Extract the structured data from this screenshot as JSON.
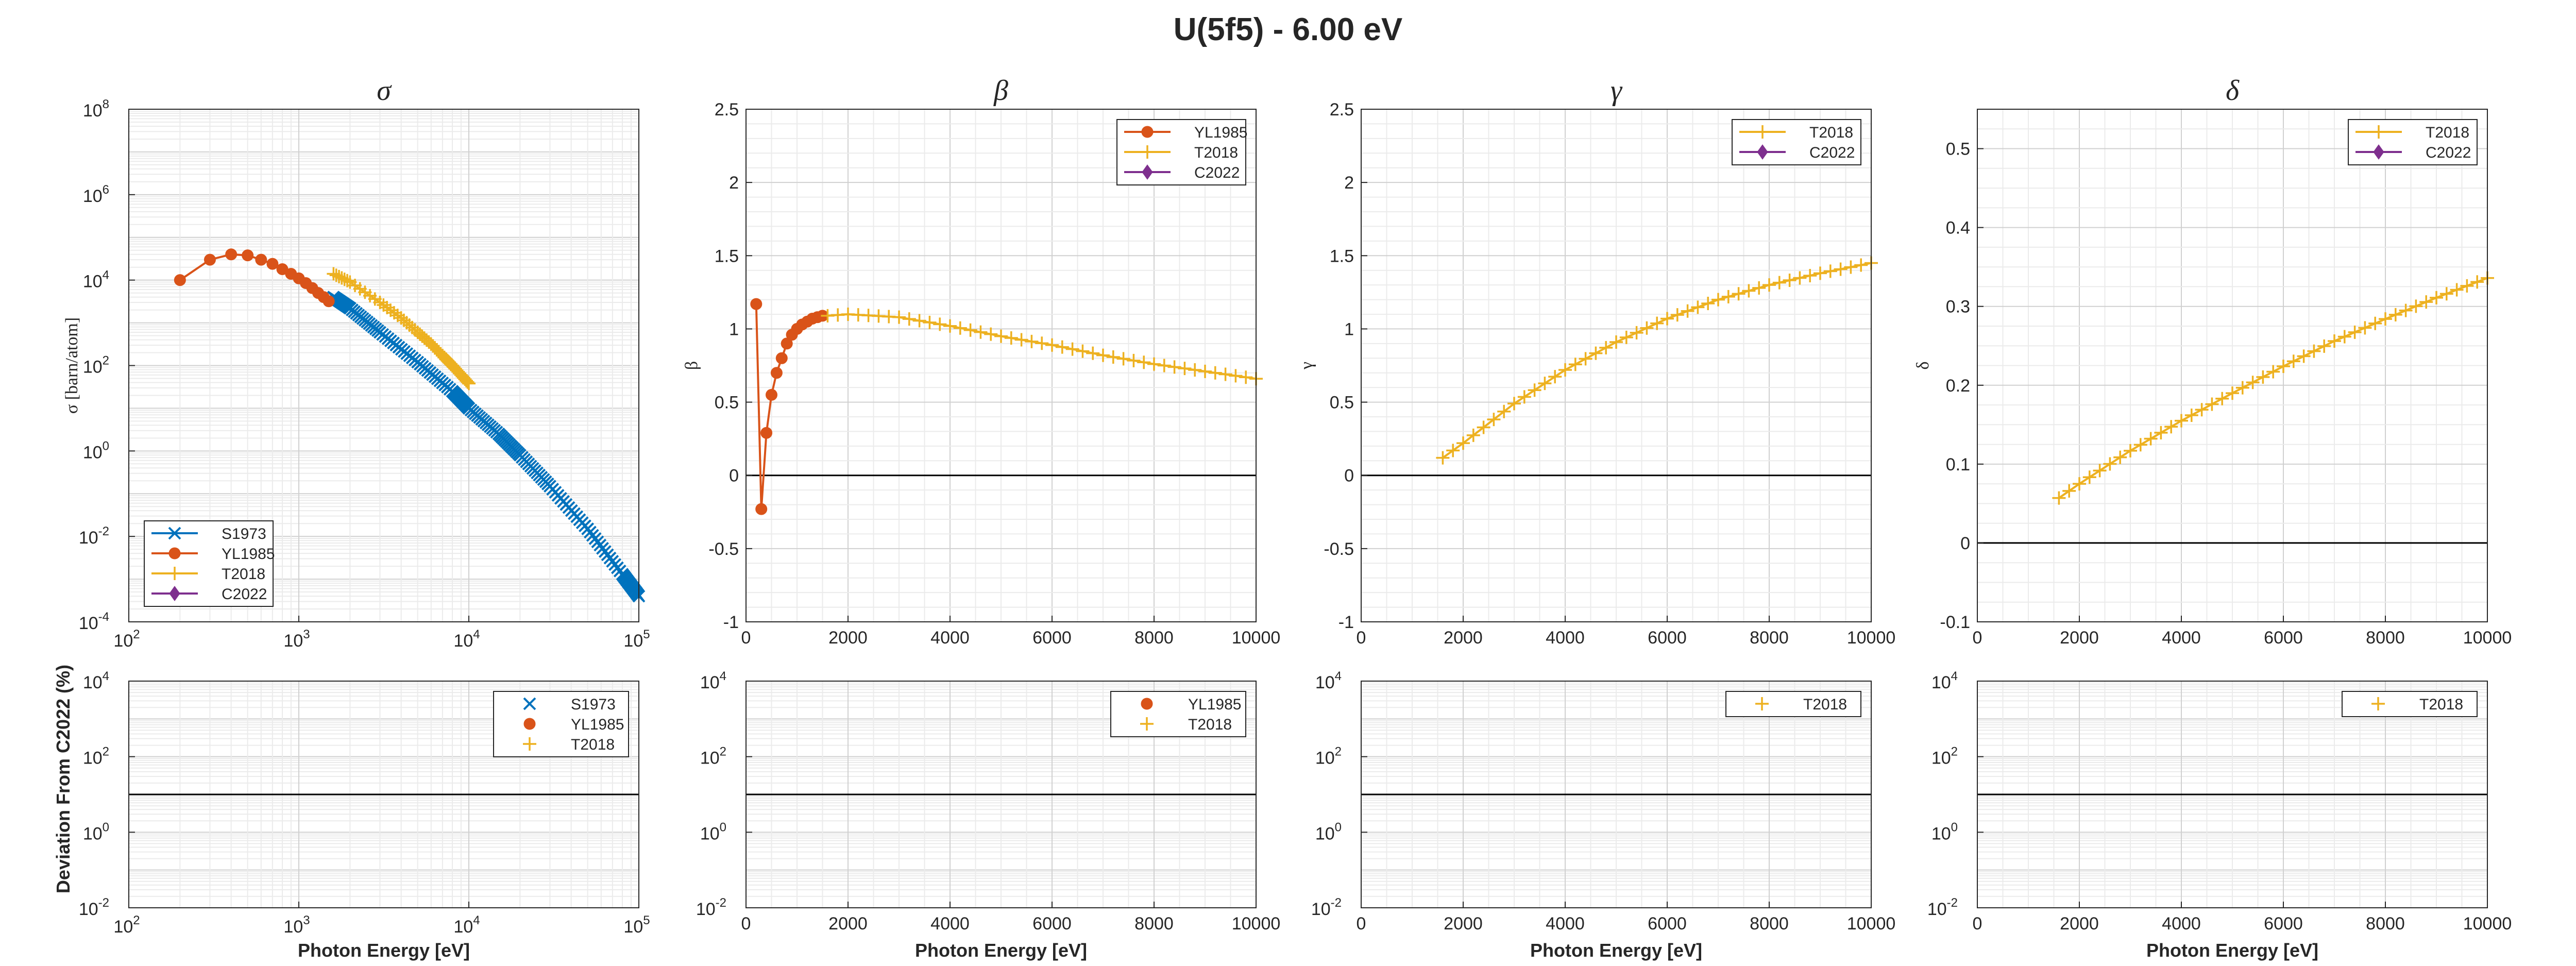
{
  "figure_title": "U(5f5) - 6.00 eV",
  "colors": {
    "S1973": "#0072BD",
    "YL1985": "#D95319",
    "T2018": "#EDB120",
    "C2022": "#7E2F8E",
    "zero_line": "#000000",
    "grid": "#dcdcdc"
  },
  "xlabel_bottom": "Photon Energy [eV]",
  "ylabel_deviation": "Deviation From C2022 (%)",
  "top_titles": [
    "σ",
    "β",
    "γ",
    "δ"
  ],
  "top_ylabels": [
    "σ [barn/atom]",
    "β",
    "γ",
    "δ"
  ],
  "linear_xticks": [
    "0",
    "2000",
    "4000",
    "6000",
    "8000",
    "10000"
  ],
  "log_xticks": [
    "2",
    "3",
    "4",
    "5"
  ],
  "log_tick_base": "10",
  "ytick_labels": {
    "sigma": [
      "-4",
      "-2",
      "0",
      "2",
      "4",
      "6",
      "8"
    ],
    "beta": [
      "-1",
      "-0.5",
      "0",
      "0.5",
      "1",
      "1.5",
      "2",
      "2.5"
    ],
    "gamma": [
      "-1",
      "-0.5",
      "0",
      "0.5",
      "1",
      "1.5",
      "2",
      "2.5"
    ],
    "delta": [
      "-0.1",
      "0",
      "0.1",
      "0.2",
      "0.3",
      "0.4",
      "0.5"
    ],
    "deviation": [
      "-2",
      "0",
      "2",
      "4"
    ]
  },
  "chart_data": [
    {
      "type": "line",
      "title": "σ",
      "xlabel": "",
      "ylabel": "σ [barn/atom]",
      "xscale": "log",
      "yscale": "log",
      "xlim": [
        100,
        100000
      ],
      "ylim": [
        0.0001,
        100000000
      ],
      "grid": true,
      "legend_placement": "bottom-left",
      "legend": [
        "S1973",
        "YL1985",
        "T2018",
        "C2022"
      ],
      "series": [
        {
          "name": "S1973",
          "marker": "x",
          "x": [
            1600,
            2000,
            3000,
            5000,
            8000,
            10000,
            15000,
            20000,
            30000,
            50000,
            80000,
            100000
          ],
          "y": [
            4000,
            2200,
            600,
            120,
            25,
            10,
            2.5,
            0.8,
            0.15,
            0.015,
            0.0013,
            0.0004
          ]
        },
        {
          "name": "YL1985",
          "marker": "o",
          "x": [
            200,
            300,
            400,
            500,
            600,
            700,
            800,
            900,
            1000,
            1100,
            1200,
            1300,
            1400,
            1500
          ],
          "y": [
            10000,
            30000,
            40000,
            38000,
            30000,
            24000,
            18000,
            14000,
            11000,
            8500,
            6500,
            5000,
            4000,
            3200
          ]
        },
        {
          "name": "T2018",
          "marker": "+",
          "x": [
            1600,
            2000,
            3000,
            4000,
            5000,
            6000,
            7000,
            8000,
            9000,
            10000
          ],
          "y": [
            14000,
            9000,
            3000,
            1300,
            600,
            320,
            170,
            100,
            60,
            38
          ]
        },
        {
          "name": "C2022",
          "marker": "diamond",
          "x": [],
          "y": []
        }
      ]
    },
    {
      "type": "line",
      "title": "β",
      "xlabel": "",
      "ylabel": "β",
      "xlim": [
        0,
        10000
      ],
      "ylim": [
        -1,
        2.5
      ],
      "grid": true,
      "legend_placement": "top-right",
      "legend": [
        "YL1985",
        "T2018",
        "C2022"
      ],
      "series": [
        {
          "name": "YL1985",
          "marker": "o",
          "x": [
            200,
            300,
            400,
            500,
            600,
            700,
            800,
            900,
            1000,
            1100,
            1200,
            1300,
            1400,
            1500
          ],
          "y": [
            1.17,
            -0.23,
            0.29,
            0.55,
            0.7,
            0.8,
            0.9,
            0.96,
            1.0,
            1.03,
            1.05,
            1.07,
            1.08,
            1.09
          ]
        },
        {
          "name": "T2018",
          "marker": "+",
          "x": [
            1600,
            2000,
            3000,
            4000,
            5000,
            6000,
            7000,
            8000,
            9000,
            10000
          ],
          "y": [
            1.09,
            1.1,
            1.08,
            1.02,
            0.95,
            0.89,
            0.82,
            0.76,
            0.71,
            0.66
          ]
        },
        {
          "name": "C2022",
          "marker": "diamond",
          "x": [],
          "y": []
        }
      ]
    },
    {
      "type": "line",
      "title": "γ",
      "xlabel": "",
      "ylabel": "γ",
      "xlim": [
        0,
        10000
      ],
      "ylim": [
        -1,
        2.5
      ],
      "grid": true,
      "legend_placement": "top-right",
      "legend": [
        "T2018",
        "C2022"
      ],
      "series": [
        {
          "name": "T2018",
          "marker": "+",
          "x": [
            1600,
            2000,
            3000,
            4000,
            5000,
            6000,
            7000,
            8000,
            9000,
            10000
          ],
          "y": [
            0.12,
            0.22,
            0.49,
            0.72,
            0.91,
            1.07,
            1.2,
            1.3,
            1.38,
            1.45
          ]
        },
        {
          "name": "C2022",
          "marker": "diamond",
          "x": [],
          "y": []
        }
      ]
    },
    {
      "type": "line",
      "title": "δ",
      "xlabel": "",
      "ylabel": "δ",
      "xlim": [
        0,
        10000
      ],
      "ylim": [
        -0.1,
        0.55
      ],
      "grid": true,
      "legend_placement": "top-right",
      "legend": [
        "T2018",
        "C2022"
      ],
      "series": [
        {
          "name": "T2018",
          "marker": "+",
          "x": [
            1600,
            2000,
            3000,
            4000,
            5000,
            6000,
            7000,
            8000,
            9000,
            10000
          ],
          "y": [
            0.057,
            0.075,
            0.117,
            0.155,
            0.19,
            0.224,
            0.256,
            0.284,
            0.311,
            0.336
          ]
        },
        {
          "name": "C2022",
          "marker": "diamond",
          "x": [],
          "y": []
        }
      ]
    },
    {
      "type": "scatter",
      "title": "",
      "xlabel": "Photon Energy [eV]",
      "ylabel": "Deviation From C2022 (%)",
      "xscale": "log",
      "yscale": "log",
      "xlim": [
        100,
        100000
      ],
      "ylim": [
        0.01,
        10000
      ],
      "grid": true,
      "reference_line_y": 10,
      "legend_placement": "top-right",
      "legend": [
        "S1973",
        "YL1985",
        "T2018"
      ],
      "series": [
        {
          "name": "S1973",
          "marker": "x",
          "x": [],
          "y": []
        },
        {
          "name": "YL1985",
          "marker": "o",
          "x": [],
          "y": []
        },
        {
          "name": "T2018",
          "marker": "+",
          "x": [],
          "y": []
        }
      ]
    },
    {
      "type": "scatter",
      "title": "",
      "xlabel": "Photon Energy [eV]",
      "ylabel": "",
      "yscale": "log",
      "xlim": [
        0,
        10000
      ],
      "ylim": [
        0.01,
        10000
      ],
      "grid": true,
      "reference_line_y": 10,
      "legend_placement": "top-right",
      "legend": [
        "YL1985",
        "T2018"
      ],
      "series": [
        {
          "name": "YL1985",
          "marker": "o",
          "x": [],
          "y": []
        },
        {
          "name": "T2018",
          "marker": "+",
          "x": [],
          "y": []
        }
      ]
    },
    {
      "type": "scatter",
      "title": "",
      "xlabel": "Photon Energy [eV]",
      "ylabel": "",
      "yscale": "log",
      "xlim": [
        0,
        10000
      ],
      "ylim": [
        0.01,
        10000
      ],
      "grid": true,
      "reference_line_y": 10,
      "legend_placement": "top-right",
      "legend": [
        "T2018"
      ],
      "series": [
        {
          "name": "T2018",
          "marker": "+",
          "x": [],
          "y": []
        }
      ]
    },
    {
      "type": "scatter",
      "title": "",
      "xlabel": "Photon Energy [eV]",
      "ylabel": "",
      "yscale": "log",
      "xlim": [
        0,
        10000
      ],
      "ylim": [
        0.01,
        10000
      ],
      "grid": true,
      "reference_line_y": 10,
      "legend_placement": "top-right",
      "legend": [
        "T2018"
      ],
      "series": [
        {
          "name": "T2018",
          "marker": "+",
          "x": [],
          "y": []
        }
      ]
    }
  ]
}
